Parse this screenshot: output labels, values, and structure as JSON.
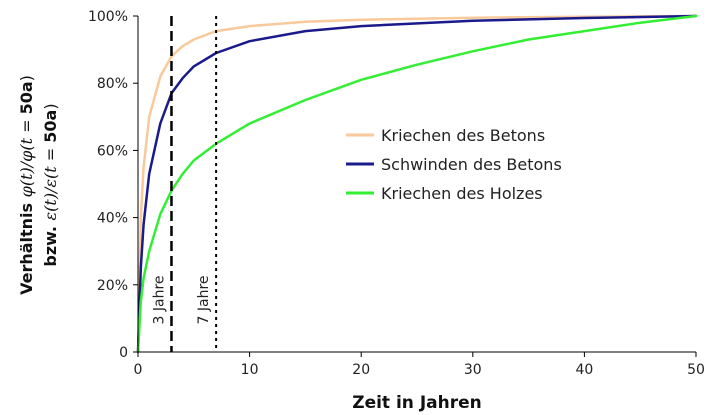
{
  "chart_data": {
    "type": "line",
    "xlabel": "Zeit in Jahren",
    "ylabel_line1_prefix": "Verhältnis ",
    "ylabel_line1_math": "φ(t)/φ(t = ",
    "ylabel_line1_bold": "50a",
    "ylabel_line1_suffix": ")",
    "ylabel_line2_prefix": "bzw. ",
    "ylabel_line2_math": "ε(t)/ε(t = ",
    "ylabel_line2_bold": "50a",
    "ylabel_line2_suffix": ")",
    "xlim": [
      0,
      50
    ],
    "ylim": [
      0,
      100
    ],
    "xticks": [
      0,
      10,
      20,
      30,
      40,
      50
    ],
    "xtick_labels": [
      "0",
      "10",
      "20",
      "30",
      "40",
      "50"
    ],
    "yticks": [
      0,
      20,
      40,
      60,
      80,
      100
    ],
    "ytick_labels": [
      "0",
      "20%",
      "40%",
      "60%",
      "80%",
      "100%"
    ],
    "grid": false,
    "legend_position": "center-right",
    "series": [
      {
        "name": "Kriechen des Betons",
        "color": "#f8c99a",
        "x": [
          0,
          0.25,
          0.5,
          1,
          2,
          3,
          4,
          5,
          7,
          10,
          15,
          20,
          30,
          40,
          50
        ],
        "values": [
          0,
          40,
          55,
          70,
          82,
          88,
          91,
          93,
          95.5,
          97,
          98.3,
          98.9,
          99.5,
          99.8,
          100
        ]
      },
      {
        "name": "Schwinden des Betons",
        "color": "#1a1a8c",
        "x": [
          0,
          0.25,
          0.5,
          1,
          2,
          3,
          4,
          5,
          7,
          10,
          15,
          20,
          30,
          40,
          50
        ],
        "values": [
          0,
          25,
          38,
          53,
          68,
          77,
          81.5,
          85,
          89,
          92.5,
          95.5,
          97,
          98.6,
          99.4,
          100
        ]
      },
      {
        "name": "Kriechen des Holzes",
        "color": "#33ee33",
        "x": [
          0,
          0.25,
          0.5,
          1,
          2,
          3,
          4,
          5,
          7,
          10,
          15,
          20,
          25,
          30,
          35,
          40,
          45,
          50
        ],
        "values": [
          0,
          15,
          22,
          30,
          41,
          48,
          53,
          57,
          62,
          68,
          75,
          81,
          85.5,
          89.5,
          93,
          95.5,
          98,
          100
        ]
      }
    ],
    "vlines": [
      {
        "x": 3,
        "label": "3 Jahre",
        "style": "dashed"
      },
      {
        "x": 7,
        "label": "7 Jahre",
        "style": "dotted"
      }
    ]
  }
}
